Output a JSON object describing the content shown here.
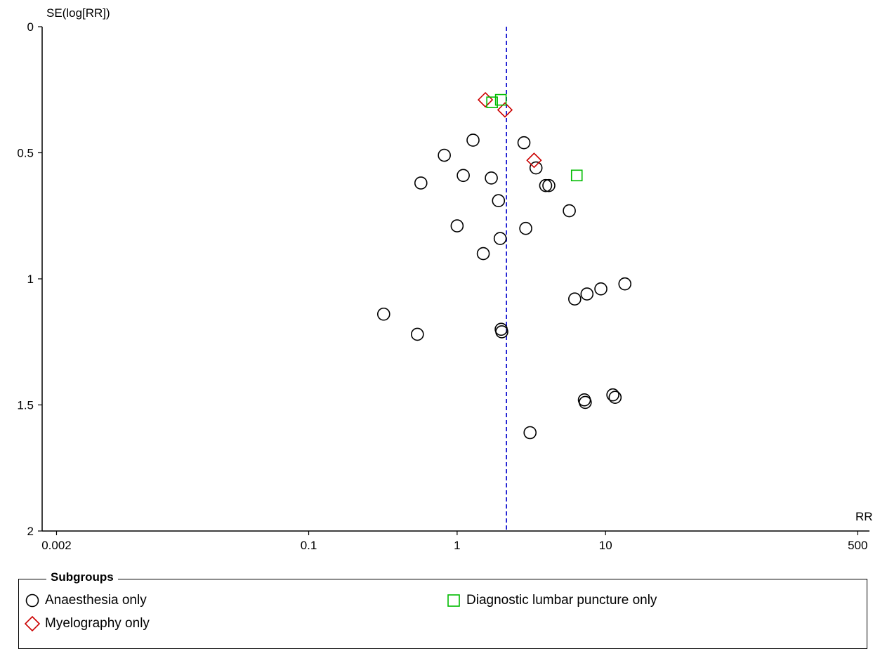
{
  "chart_data": {
    "type": "scatter",
    "subtype": "funnel plot",
    "x_axis": {
      "label": "RR",
      "scale": "log",
      "range": [
        0.0016,
        600
      ],
      "ticks": [
        {
          "value": 0.002,
          "label": "0.002"
        },
        {
          "value": 0.1,
          "label": "0.1"
        },
        {
          "value": 1,
          "label": "1"
        },
        {
          "value": 10,
          "label": "10"
        },
        {
          "value": 500,
          "label": "500"
        }
      ]
    },
    "y_axis": {
      "label": "SE(log[RR])",
      "inverted": true,
      "range": [
        0,
        2
      ],
      "ticks": [
        {
          "value": 0,
          "label": "0"
        },
        {
          "value": 0.5,
          "label": "0.5"
        },
        {
          "value": 1,
          "label": "1"
        },
        {
          "value": 1.5,
          "label": "1.5"
        },
        {
          "value": 2,
          "label": "2"
        }
      ]
    },
    "reference_line": {
      "rr": 2.15,
      "style": "dashed",
      "color": "#0000cc"
    },
    "series": [
      {
        "name": "Anaesthesia only",
        "marker": "circle",
        "color": "#000000",
        "points": [
          {
            "rr": 1.28,
            "se": 0.45
          },
          {
            "rr": 0.82,
            "se": 0.51
          },
          {
            "rr": 0.57,
            "se": 0.62
          },
          {
            "rr": 1.1,
            "se": 0.59
          },
          {
            "rr": 1.7,
            "se": 0.6
          },
          {
            "rr": 2.82,
            "se": 0.46
          },
          {
            "rr": 3.4,
            "se": 0.56
          },
          {
            "rr": 3.95,
            "se": 0.63
          },
          {
            "rr": 4.15,
            "se": 0.63
          },
          {
            "rr": 1.9,
            "se": 0.69
          },
          {
            "rr": 5.7,
            "se": 0.73
          },
          {
            "rr": 1.0,
            "se": 0.79
          },
          {
            "rr": 2.9,
            "se": 0.8
          },
          {
            "rr": 1.95,
            "se": 0.84
          },
          {
            "rr": 1.5,
            "se": 0.9
          },
          {
            "rr": 13.5,
            "se": 1.02
          },
          {
            "rr": 9.3,
            "se": 1.04
          },
          {
            "rr": 7.5,
            "se": 1.06
          },
          {
            "rr": 6.2,
            "se": 1.08
          },
          {
            "rr": 0.32,
            "se": 1.14
          },
          {
            "rr": 0.54,
            "se": 1.22
          },
          {
            "rr": 1.98,
            "se": 1.2
          },
          {
            "rr": 2.0,
            "se": 1.21
          },
          {
            "rr": 7.2,
            "se": 1.48
          },
          {
            "rr": 7.3,
            "se": 1.49
          },
          {
            "rr": 11.2,
            "se": 1.46
          },
          {
            "rr": 11.6,
            "se": 1.47
          },
          {
            "rr": 3.1,
            "se": 1.61
          }
        ]
      },
      {
        "name": "Myelography only",
        "marker": "diamond",
        "color": "#cc0000",
        "points": [
          {
            "rr": 1.55,
            "se": 0.29
          },
          {
            "rr": 2.1,
            "se": 0.33
          },
          {
            "rr": 3.3,
            "se": 0.53
          }
        ]
      },
      {
        "name": "Diagnostic lumbar puncture only",
        "marker": "square",
        "color": "#00bb00",
        "points": [
          {
            "rr": 1.97,
            "se": 0.29
          },
          {
            "rr": 1.72,
            "se": 0.3
          },
          {
            "rr": 6.4,
            "se": 0.59
          }
        ]
      }
    ],
    "legend": {
      "title": "Subgroups",
      "placement": "bottom"
    }
  },
  "legend": {
    "title": "Subgroups",
    "items": [
      {
        "label": "Anaesthesia only",
        "marker": "circle",
        "color": "#000000"
      },
      {
        "label": "Myelography only",
        "marker": "diamond",
        "color": "#cc0000"
      },
      {
        "label": "Diagnostic lumbar puncture only",
        "marker": "square",
        "color": "#00bb00"
      }
    ]
  }
}
